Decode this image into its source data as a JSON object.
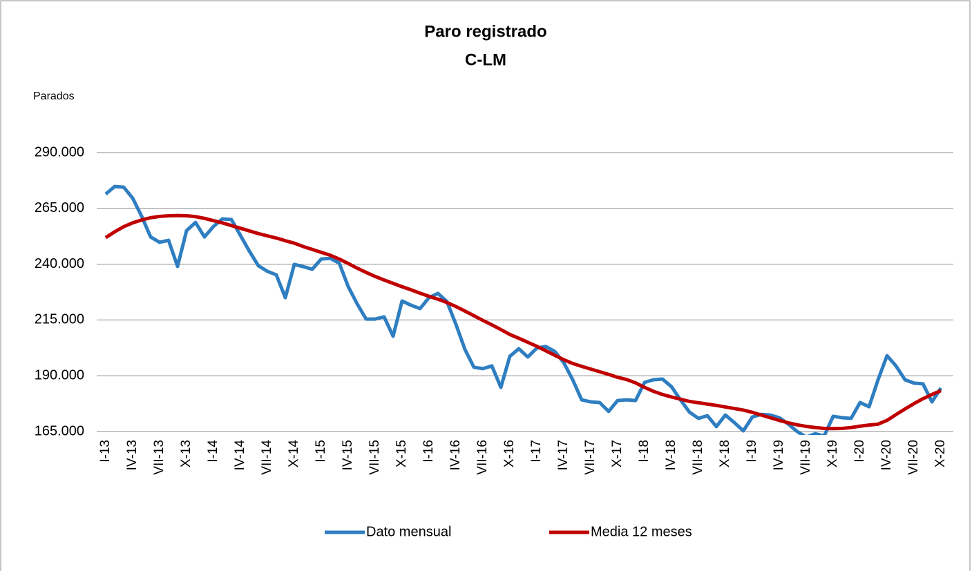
{
  "chart_data": {
    "type": "line",
    "title": "Paro registrado",
    "subtitle": "C-LM",
    "y_axis_label": "Parados",
    "categories": [
      "I-13",
      null,
      null,
      "IV-13",
      null,
      null,
      "VII-13",
      null,
      null,
      "X-13",
      null,
      null,
      "I-14",
      null,
      null,
      "IV-14",
      null,
      null,
      "VII-14",
      null,
      null,
      "X-14",
      null,
      null,
      "I-15",
      null,
      null,
      "IV-15",
      null,
      null,
      "VII-15",
      null,
      null,
      "X-15",
      null,
      null,
      "I-16",
      null,
      null,
      "IV-16",
      null,
      null,
      "VII-16",
      null,
      null,
      "X-16",
      null,
      null,
      "I-17",
      null,
      null,
      "IV-17",
      null,
      null,
      "VII-17",
      null,
      null,
      "X-17",
      null,
      null,
      "I-18",
      null,
      null,
      "IV-18",
      null,
      null,
      "VII-18",
      null,
      null,
      "X-18",
      null,
      null,
      "I-19",
      null,
      null,
      "IV-19",
      null,
      null,
      "VII-19",
      null,
      null,
      "X-19",
      null,
      null,
      "I-20",
      null,
      null,
      "IV-20",
      null,
      null,
      "VII-20",
      null,
      null,
      "X-20"
    ],
    "series": [
      {
        "name": "Dato mensual",
        "color": "#2e7ec1",
        "values": [
          271400,
          274800,
          274500,
          269600,
          261500,
          252200,
          249800,
          250700,
          239000,
          255000,
          258700,
          252200,
          256900,
          260300,
          260000,
          252900,
          245800,
          239300,
          236800,
          235200,
          225000,
          239900,
          238900,
          237700,
          242300,
          242600,
          240500,
          230000,
          222200,
          215400,
          215400,
          216400,
          207700,
          223500,
          221600,
          220100,
          225000,
          226900,
          223200,
          213000,
          201800,
          193800,
          193200,
          194400,
          184800,
          198700,
          202100,
          198400,
          202400,
          203100,
          200900,
          195900,
          188200,
          179200,
          178300,
          178000,
          174000,
          178900,
          179200,
          178900,
          187000,
          188200,
          188500,
          185100,
          179200,
          173700,
          170900,
          172100,
          167200,
          172400,
          169000,
          165300,
          171500,
          172700,
          172400,
          171200,
          168400,
          165000,
          162500,
          164000,
          163000,
          171800,
          171200,
          170900,
          178000,
          176100,
          188200,
          199000,
          194400,
          188200,
          186700,
          186400,
          178300,
          184500
        ]
      },
      {
        "name": "Media 12 meses",
        "color": "#c00000",
        "values": [
          251900,
          254500,
          256800,
          258500,
          259800,
          260800,
          261400,
          261700,
          261800,
          261700,
          261300,
          260500,
          259500,
          258500,
          257300,
          256100,
          254900,
          253700,
          252700,
          251700,
          250500,
          249400,
          247900,
          246600,
          245300,
          244000,
          242300,
          240300,
          238200,
          236300,
          234500,
          232900,
          231400,
          229900,
          228500,
          227000,
          225600,
          224300,
          222800,
          221000,
          219000,
          216900,
          214800,
          212800,
          210700,
          208500,
          206800,
          205000,
          203200,
          201200,
          199200,
          197200,
          195500,
          194200,
          193000,
          191800,
          190600,
          189300,
          188300,
          186800,
          184800,
          183000,
          181600,
          180500,
          179500,
          178500,
          177900,
          177300,
          176700,
          176000,
          175300,
          174600,
          173600,
          172400,
          171200,
          170000,
          168900,
          168000,
          167300,
          166800,
          166400,
          166300,
          166400,
          166800,
          167400,
          167900,
          168300,
          170000,
          172600,
          175100,
          177500,
          179700,
          181600,
          183300
        ]
      }
    ],
    "ylim": [
      165000,
      290000
    ],
    "yticks": [
      {
        "value": 165000,
        "label": "165.000"
      },
      {
        "value": 190000,
        "label": "190.000"
      },
      {
        "value": 215000,
        "label": "215.000"
      },
      {
        "value": 240000,
        "label": "240.000"
      },
      {
        "value": 265000,
        "label": "265.000"
      },
      {
        "value": 290000,
        "label": "290.000"
      }
    ],
    "grid": true,
    "legend": "bottom"
  }
}
